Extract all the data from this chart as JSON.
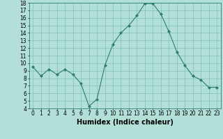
{
  "x": [
    0,
    1,
    2,
    3,
    4,
    5,
    6,
    7,
    8,
    9,
    10,
    11,
    12,
    13,
    14,
    15,
    16,
    17,
    18,
    19,
    20,
    21,
    22,
    23
  ],
  "y": [
    9.5,
    8.3,
    9.2,
    8.5,
    9.2,
    8.5,
    7.3,
    4.3,
    5.2,
    9.7,
    12.5,
    14.0,
    15.0,
    16.3,
    17.9,
    17.9,
    16.5,
    14.2,
    11.5,
    9.7,
    8.3,
    7.8,
    6.8,
    6.8
  ],
  "line_color": "#2e7d6e",
  "marker": "D",
  "marker_size": 2,
  "bg_color": "#b2e0d8",
  "grid_color": "#7fbfb8",
  "xlabel": "Humidex (Indice chaleur)",
  "ylim": [
    4,
    18
  ],
  "xlim": [
    -0.5,
    23.5
  ],
  "yticks": [
    4,
    5,
    6,
    7,
    8,
    9,
    10,
    11,
    12,
    13,
    14,
    15,
    16,
    17,
    18
  ],
  "xticks": [
    0,
    1,
    2,
    3,
    4,
    5,
    6,
    7,
    8,
    9,
    10,
    11,
    12,
    13,
    14,
    15,
    16,
    17,
    18,
    19,
    20,
    21,
    22,
    23
  ],
  "tick_fontsize": 5.5,
  "xlabel_fontsize": 7,
  "xlabel_fontweight": "bold"
}
